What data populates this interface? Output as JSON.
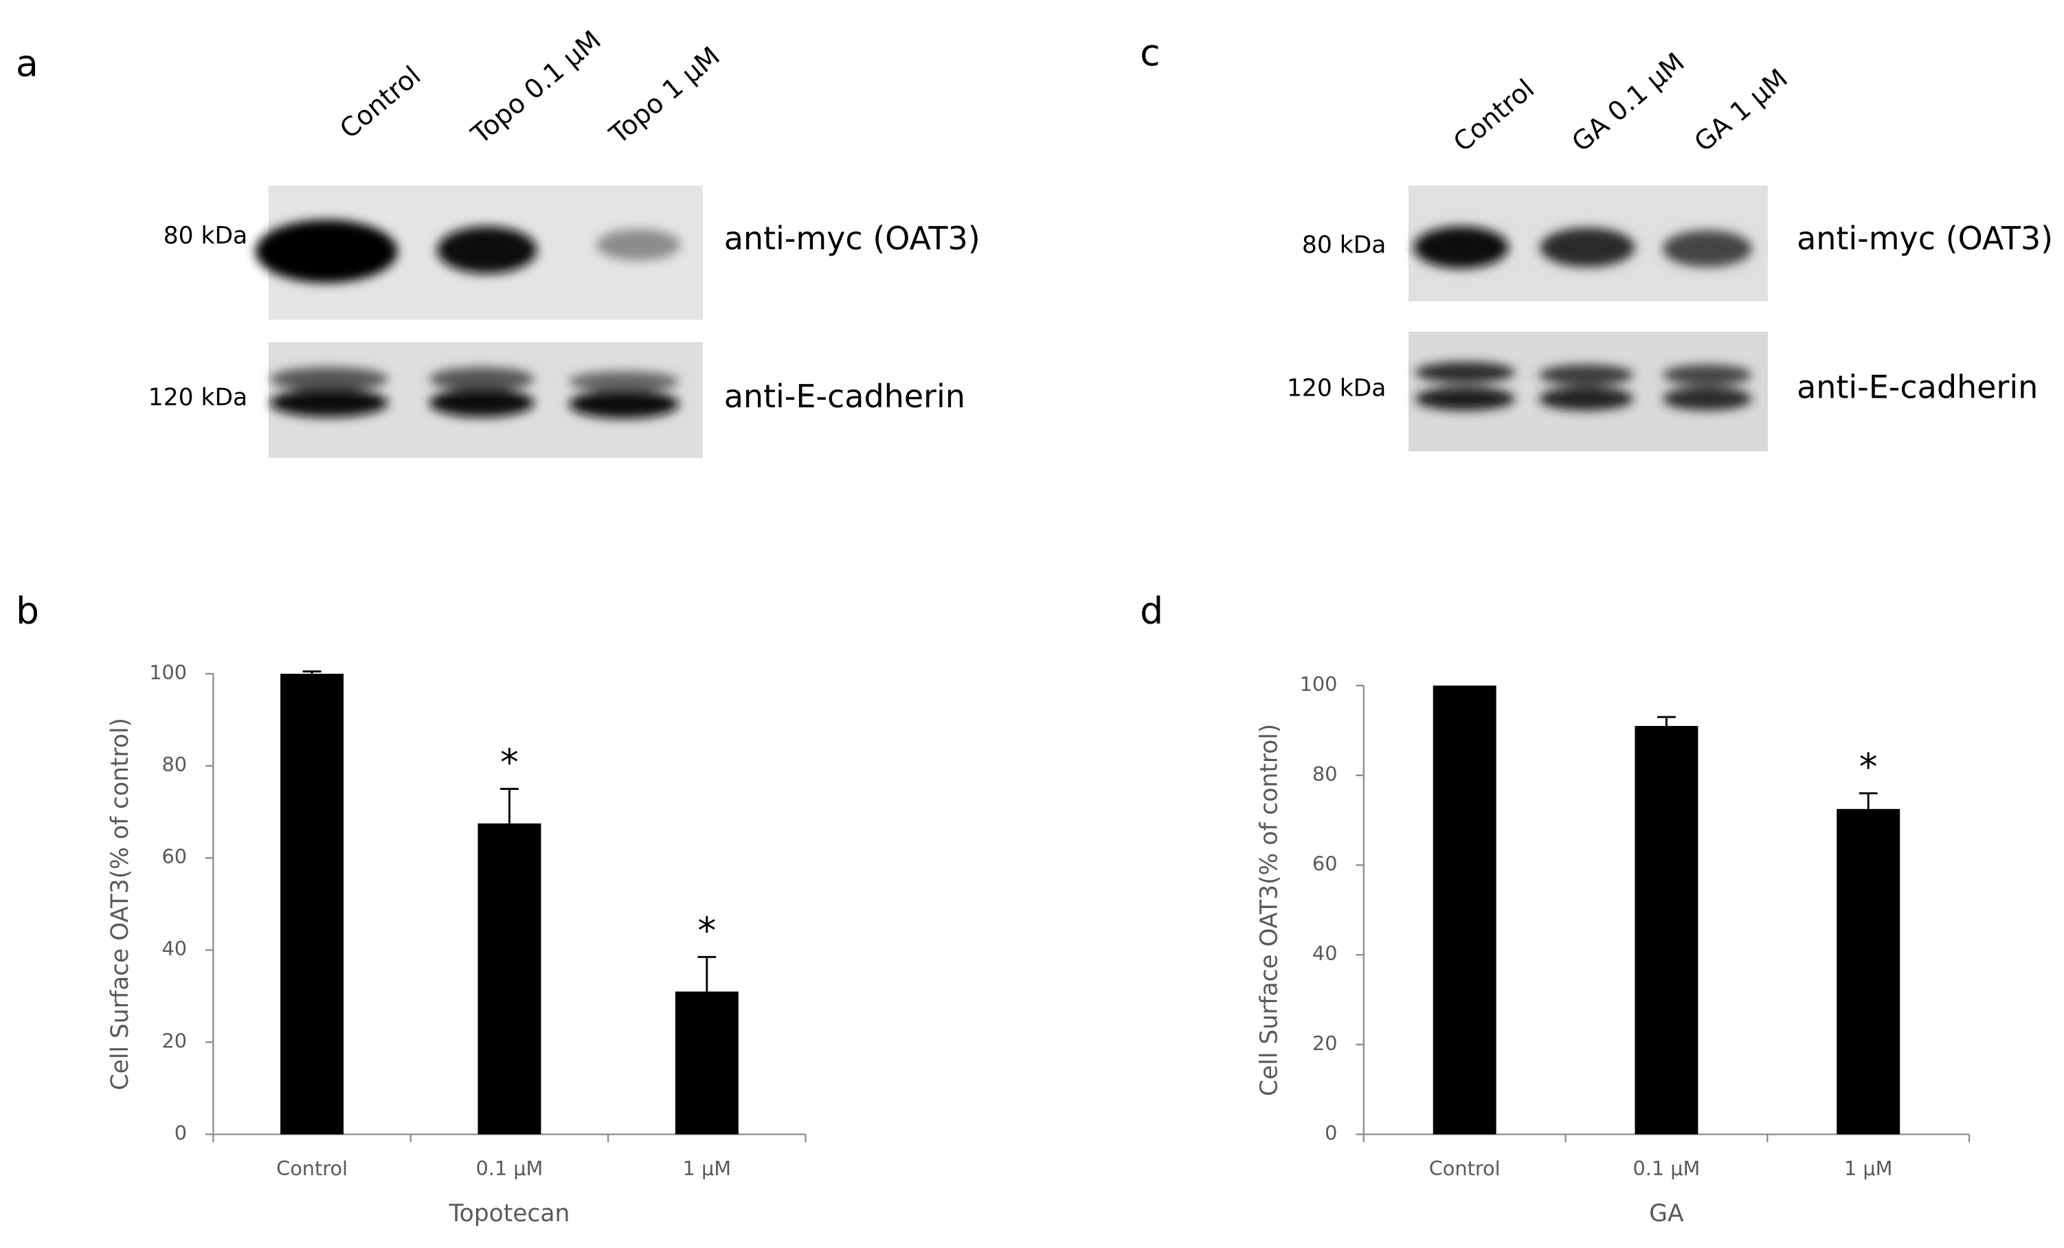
{
  "panels": [
    {
      "label": "a",
      "lanes": [
        "Control",
        "Topo 0.1 µM",
        "Topo 1 µM"
      ],
      "blots": [
        {
          "marker": "80 kDa",
          "antibody": "anti-myc (OAT3)"
        },
        {
          "marker": "120 kDa",
          "antibody": "anti-E-cadherin"
        }
      ]
    },
    {
      "label": "c",
      "lanes": [
        "Control",
        "GA 0.1 µM",
        "GA 1 µM"
      ],
      "blots": [
        {
          "marker": "80 kDa",
          "antibody": "anti-myc (OAT3)"
        },
        {
          "marker": "120 kDa",
          "antibody": "anti-E-cadherin"
        }
      ]
    }
  ],
  "chart_data": [
    {
      "type": "bar",
      "panel_label": "b",
      "categories": [
        "Control",
        "0.1 µM",
        "1 µM"
      ],
      "values": [
        100,
        67.5,
        31
      ],
      "errors": [
        0.5,
        7.5,
        7.5
      ],
      "color": "#000000",
      "annotations": [
        {
          "text": "*",
          "category": "0.1 µM"
        },
        {
          "text": "*",
          "category": "1 µM"
        }
      ],
      "x_label": "Topotecan",
      "y_label": "Cell Surface OAT3(% of control)",
      "ylim": [
        0,
        100
      ],
      "yticks": [
        0,
        20,
        40,
        60,
        80,
        100
      ],
      "grid": false
    },
    {
      "type": "bar",
      "panel_label": "d",
      "categories": [
        "Control",
        "0.1 µM",
        "1 µM"
      ],
      "values": [
        100,
        91,
        72.5
      ],
      "errors": [
        null,
        2,
        3.5
      ],
      "color": "#000000",
      "annotations": [
        {
          "text": "*",
          "category": "1 µM"
        }
      ],
      "x_label": "GA",
      "y_label": "Cell Surface OAT3(% of control)",
      "ylim": [
        0,
        100
      ],
      "yticks": [
        0,
        20,
        40,
        60,
        80,
        100
      ],
      "grid": false
    }
  ]
}
